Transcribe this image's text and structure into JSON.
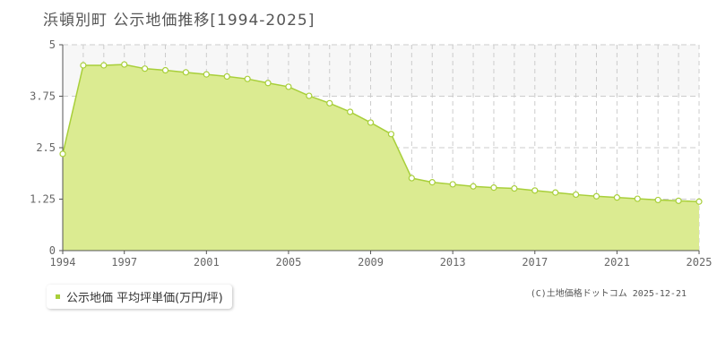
{
  "title": "浜頓別町 公示地価推移[1994-2025]",
  "legend": {
    "label": "公示地価 平均坪単価(万円/坪)"
  },
  "credit": "(C)土地価格ドットコム 2025-12-21",
  "colors": {
    "area_fill": "#dbeb91",
    "line": "#a8cf3a",
    "marker_fill": "#ffffff",
    "grid_h": "#cccccc",
    "grid_v": "#cccccc",
    "axis": "#555555",
    "band": "#f7f7f7",
    "legend_swatch": "#a8cf3a"
  },
  "chart_data": {
    "type": "area",
    "ylim": [
      0,
      5
    ],
    "xlim": [
      1994,
      2025
    ],
    "yticks": [
      "0",
      "1.25",
      "2.5",
      "3.75",
      "5"
    ],
    "ytick_values": [
      0,
      1.25,
      2.5,
      3.75,
      5
    ],
    "xticks": [
      "1994",
      "1997",
      "2001",
      "2005",
      "2009",
      "2013",
      "2017",
      "2021",
      "2025"
    ],
    "xtick_values": [
      1994,
      1997,
      2001,
      2005,
      2009,
      2013,
      2017,
      2021,
      2025
    ],
    "grid": true,
    "legend_position": "bottom-left",
    "series": [
      {
        "name": "公示地価 平均坪単価(万円/坪)",
        "x": [
          1994,
          1995,
          1996,
          1997,
          1998,
          1999,
          2000,
          2001,
          2002,
          2003,
          2004,
          2005,
          2006,
          2007,
          2008,
          2009,
          2010,
          2011,
          2012,
          2013,
          2014,
          2015,
          2016,
          2017,
          2018,
          2019,
          2020,
          2021,
          2022,
          2023,
          2024,
          2025
        ],
        "values": [
          2.35,
          4.5,
          4.5,
          4.52,
          4.42,
          4.38,
          4.33,
          4.28,
          4.23,
          4.17,
          4.07,
          3.98,
          3.76,
          3.58,
          3.37,
          3.11,
          2.83,
          1.76,
          1.66,
          1.61,
          1.56,
          1.53,
          1.51,
          1.46,
          1.41,
          1.36,
          1.32,
          1.29,
          1.26,
          1.23,
          1.21,
          1.19
        ]
      }
    ]
  }
}
